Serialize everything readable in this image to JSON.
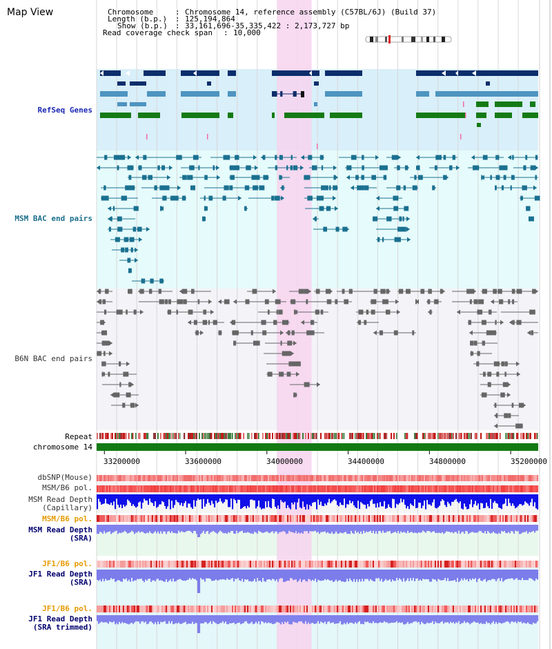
{
  "view_title": "Map View",
  "header": {
    "chromosome_key": "Chromosome",
    "chromosome_val": "Chromosome 14, reference assembly (C57BL/6J) (Build 37)",
    "length_key": "Length (b.p.)",
    "length_val": "125,194,864",
    "show_key": "Show (b.p.)",
    "show_val": "33,161,696-35,335,422 : 2,173,727 bp",
    "coverage_key": "Read coverage check span",
    "coverage_val": "10,000"
  },
  "tracks": {
    "refseq": "RefSeq Genes",
    "msm_bac": "MSM BAC end pairs",
    "b6n_bac": "B6N BAC end pairs",
    "repeat": "Repeat",
    "chromosome": "chromosome 14",
    "dbsnp": "dbSNP(Mouse)",
    "msm_b6_pol": "MSM/B6 pol.",
    "msm_depth_cap_1": "MSM Read Depth",
    "msm_depth_cap_2": "(Capillary)",
    "msm_b6_pol_2": "MSM/B6 pol.",
    "msm_depth_sra_1": "MSM Read Depth",
    "msm_depth_sra_2": "(SRA)",
    "jf1_b6_pol": "JF1/B6 pol.",
    "jf1_depth_sra_1": "JF1 Read Depth",
    "jf1_depth_sra_2": "(SRA)",
    "jf1_b6_pol_2": "JF1/B6 pol.",
    "jf1_depth_trim_1": "JF1 Read Depth",
    "jf1_depth_trim_2": "(SRA trimmed)"
  },
  "axis": {
    "ticks": [
      "33200000",
      "33600000",
      "34000000",
      "34400000",
      "34800000",
      "35200000"
    ],
    "range": [
      33161696,
      35335422
    ],
    "highlight": [
      34050000,
      34220000
    ]
  },
  "colors": {
    "refseq_bg": "#d9effa",
    "msm_bg": "#e6fbfb",
    "b6n_bg": "#f3f3f8",
    "highlight": "#f7d3ef",
    "navy": "#0b2d6b",
    "steel": "#4e94c0",
    "green": "#157a15",
    "teal": "#1a7090",
    "gray": "#666666",
    "chrom_bar": "#137a13",
    "label_blue": "#1c28b4",
    "label_teal": "#1b6e8c",
    "label_orange": "#e59a00",
    "label_navy": "#00006f"
  }
}
